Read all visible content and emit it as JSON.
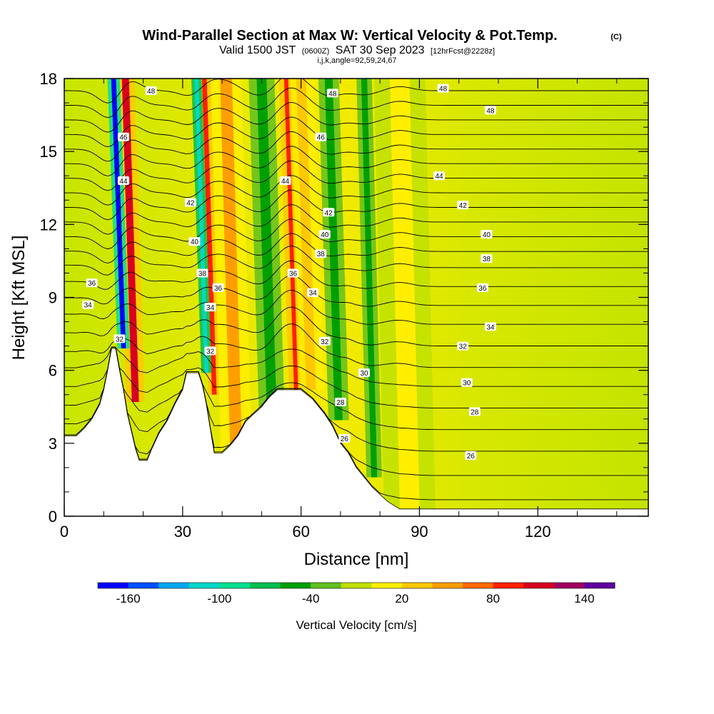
{
  "chart_data": {
    "type": "heatmap",
    "title": "Wind-Parallel Section at Max W: Vertical Velocity & Pot.Temp.",
    "title_mark": "(C)",
    "subtitle_main": "Valid 1500 JST",
    "subtitle_utc": "(0600Z)",
    "subtitle_date": "SAT 30 Sep 2023",
    "subtitle_fcst": "[12hrFcst@2228z]",
    "subtitle2": "i,j,k,angle=92,59,24,67",
    "xlabel": "Distance [nm]",
    "ylabel": "Height [Kft MSL]",
    "xlim": [
      0,
      148
    ],
    "ylim": [
      0,
      18
    ],
    "x_ticks": [
      0,
      30,
      60,
      90,
      120
    ],
    "y_ticks": [
      0,
      3,
      6,
      9,
      12,
      15,
      18
    ],
    "colorbar": {
      "label": "Vertical Velocity [cm/s]",
      "ticks": [
        "-160",
        "-100",
        "-40",
        "20",
        "80",
        "140"
      ],
      "levels": [
        -160,
        -140,
        -120,
        -100,
        -80,
        -60,
        -40,
        -20,
        0,
        20,
        40,
        60,
        80,
        100,
        120,
        140,
        160
      ],
      "colors": [
        "#0000ff",
        "#0050ff",
        "#00a8f0",
        "#00d8c8",
        "#00e090",
        "#00c050",
        "#00a000",
        "#60c020",
        "#c0e000",
        "#ffee00",
        "#ffc800",
        "#ff9e00",
        "#ff6a00",
        "#ff2000",
        "#d80020",
        "#a00060",
        "#6000a0"
      ]
    },
    "terrain_kft": [
      [
        0,
        3.3
      ],
      [
        3,
        3.3
      ],
      [
        5,
        3.6
      ],
      [
        7,
        4.0
      ],
      [
        9,
        4.6
      ],
      [
        10,
        5.2
      ],
      [
        11,
        6.0
      ],
      [
        12,
        6.9
      ],
      [
        13,
        6.9
      ],
      [
        14,
        6.0
      ],
      [
        15,
        5.2
      ],
      [
        16,
        4.2
      ],
      [
        17,
        3.5
      ],
      [
        18,
        2.8
      ],
      [
        19,
        2.3
      ],
      [
        21,
        2.3
      ],
      [
        22,
        2.7
      ],
      [
        24,
        3.4
      ],
      [
        26,
        3.9
      ],
      [
        28,
        4.6
      ],
      [
        30,
        5.2
      ],
      [
        31,
        5.9
      ],
      [
        34,
        5.9
      ],
      [
        35,
        5.4
      ],
      [
        36,
        4.6
      ],
      [
        37,
        3.6
      ],
      [
        38,
        2.6
      ],
      [
        40,
        2.6
      ],
      [
        42,
        2.9
      ],
      [
        44,
        3.3
      ],
      [
        46,
        3.9
      ],
      [
        48,
        4.2
      ],
      [
        50,
        4.5
      ],
      [
        52,
        4.9
      ],
      [
        54,
        5.2
      ],
      [
        60,
        5.2
      ],
      [
        63,
        4.8
      ],
      [
        66,
        4.2
      ],
      [
        68,
        3.7
      ],
      [
        70,
        3.0
      ],
      [
        72,
        2.6
      ],
      [
        74,
        2.0
      ],
      [
        76,
        1.6
      ],
      [
        78,
        1.2
      ],
      [
        80,
        0.9
      ],
      [
        82,
        0.6
      ],
      [
        85,
        0.3
      ],
      [
        148,
        0.3
      ]
    ],
    "updrafts": [
      {
        "x": 15.5,
        "w": 1.8,
        "value": 130
      },
      {
        "x": 35.5,
        "w": 1.2,
        "value": 110
      },
      {
        "x": 56.5,
        "w": 1.6,
        "value": 100
      },
      {
        "x": 41,
        "w": 3.0,
        "value": 60
      },
      {
        "x": 60,
        "w": 2.5,
        "value": 50
      },
      {
        "x": 85,
        "w": 5.0,
        "value": 30
      }
    ],
    "downdrafts": [
      {
        "x": 12.5,
        "w": 1.2,
        "value": -150
      },
      {
        "x": 33.5,
        "w": 1.0,
        "value": -100
      },
      {
        "x": 50,
        "w": 2.5,
        "value": -40
      },
      {
        "x": 67,
        "w": 2.0,
        "value": -40
      },
      {
        "x": 76,
        "w": 1.5,
        "value": -30
      }
    ],
    "theta_isentropes": [
      {
        "theta": 26,
        "base_kft": 1.7
      },
      {
        "theta": 27,
        "base_kft": 2.6
      },
      {
        "theta": 28,
        "base_kft": 3.5
      },
      {
        "theta": 29,
        "base_kft": 4.3
      },
      {
        "theta": 30,
        "base_kft": 5.1
      },
      {
        "theta": 31,
        "base_kft": 5.9
      },
      {
        "theta": 32,
        "base_kft": 6.6
      },
      {
        "theta": 33,
        "base_kft": 7.4
      },
      {
        "theta": 34,
        "base_kft": 8.2
      },
      {
        "theta": 35,
        "base_kft": 8.9
      },
      {
        "theta": 36,
        "base_kft": 9.6
      },
      {
        "theta": 37,
        "base_kft": 10.3
      },
      {
        "theta": 38,
        "base_kft": 10.9
      },
      {
        "theta": 39,
        "base_kft": 11.5
      },
      {
        "theta": 40,
        "base_kft": 12.1
      },
      {
        "theta": 41,
        "base_kft": 12.7
      },
      {
        "theta": 42,
        "base_kft": 13.3
      },
      {
        "theta": 43,
        "base_kft": 13.9
      },
      {
        "theta": 44,
        "base_kft": 14.5
      },
      {
        "theta": 45,
        "base_kft": 15.1
      },
      {
        "theta": 46,
        "base_kft": 15.7
      },
      {
        "theta": 47,
        "base_kft": 16.3
      },
      {
        "theta": 48,
        "base_kft": 16.9
      },
      {
        "theta": 49,
        "base_kft": 17.5
      }
    ],
    "isentrope_labels": [
      {
        "text": "48",
        "x": 22,
        "y": 17.5
      },
      {
        "text": "48",
        "x": 68,
        "y": 17.4
      },
      {
        "text": "48",
        "x": 96,
        "y": 17.6
      },
      {
        "text": "48",
        "x": 108,
        "y": 16.7
      },
      {
        "text": "46",
        "x": 15,
        "y": 15.6
      },
      {
        "text": "46",
        "x": 65,
        "y": 15.6
      },
      {
        "text": "44",
        "x": 15,
        "y": 13.8
      },
      {
        "text": "44",
        "x": 56,
        "y": 13.8
      },
      {
        "text": "44",
        "x": 95,
        "y": 14.0
      },
      {
        "text": "42",
        "x": 32,
        "y": 12.9
      },
      {
        "text": "42",
        "x": 67,
        "y": 12.5
      },
      {
        "text": "42",
        "x": 101,
        "y": 12.8
      },
      {
        "text": "40",
        "x": 33,
        "y": 11.3
      },
      {
        "text": "40",
        "x": 66,
        "y": 11.6
      },
      {
        "text": "40",
        "x": 107,
        "y": 11.6
      },
      {
        "text": "38",
        "x": 35,
        "y": 10.0
      },
      {
        "text": "38",
        "x": 65,
        "y": 10.8
      },
      {
        "text": "38",
        "x": 107,
        "y": 10.6
      },
      {
        "text": "36",
        "x": 7,
        "y": 9.6
      },
      {
        "text": "36",
        "x": 39,
        "y": 9.4
      },
      {
        "text": "36",
        "x": 58,
        "y": 10.0
      },
      {
        "text": "36",
        "x": 106,
        "y": 9.4
      },
      {
        "text": "34",
        "x": 6,
        "y": 8.7
      },
      {
        "text": "34",
        "x": 37,
        "y": 8.6
      },
      {
        "text": "34",
        "x": 63,
        "y": 9.2
      },
      {
        "text": "34",
        "x": 108,
        "y": 7.8
      },
      {
        "text": "32",
        "x": 14,
        "y": 7.3
      },
      {
        "text": "32",
        "x": 37,
        "y": 6.8
      },
      {
        "text": "32",
        "x": 66,
        "y": 7.2
      },
      {
        "text": "32",
        "x": 101,
        "y": 7.0
      },
      {
        "text": "30",
        "x": 76,
        "y": 5.9
      },
      {
        "text": "30",
        "x": 102,
        "y": 5.5
      },
      {
        "text": "28",
        "x": 70,
        "y": 4.7
      },
      {
        "text": "28",
        "x": 104,
        "y": 4.3
      },
      {
        "text": "26",
        "x": 71,
        "y": 3.2
      },
      {
        "text": "26",
        "x": 103,
        "y": 2.5
      }
    ]
  }
}
